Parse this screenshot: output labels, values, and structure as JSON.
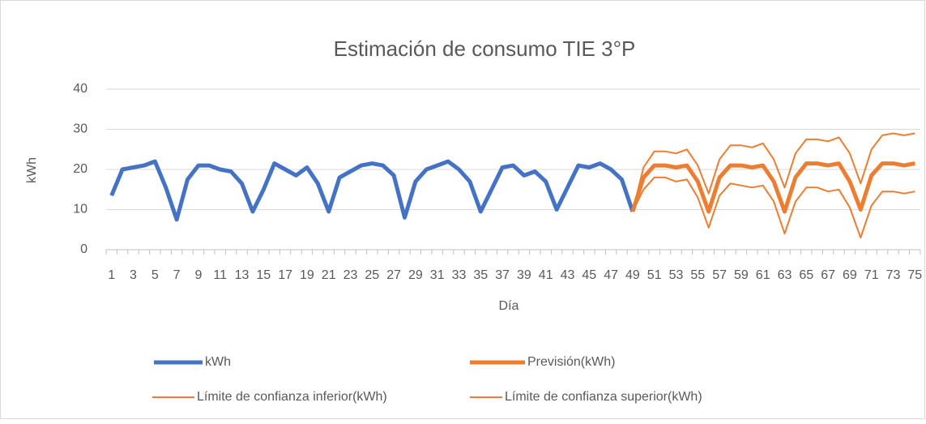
{
  "chart_data": {
    "type": "line",
    "title": "Estimación de consumo TIE 3°P",
    "x_label": "Día",
    "y_label": "kWh",
    "categories": [
      1,
      null,
      3,
      null,
      5,
      null,
      7,
      null,
      9,
      null,
      11,
      null,
      13,
      null,
      15,
      null,
      17,
      null,
      19,
      null,
      21,
      null,
      23,
      null,
      25,
      null,
      27,
      null,
      29,
      null,
      31,
      null,
      33,
      null,
      35,
      null,
      37,
      null,
      39,
      null,
      41,
      null,
      43,
      null,
      45,
      null,
      47,
      null,
      49,
      null,
      51,
      null,
      53,
      null,
      55,
      null,
      57,
      null,
      59,
      null,
      61,
      null,
      63,
      null,
      65,
      null,
      67,
      null,
      69,
      null,
      71,
      null,
      73,
      null,
      75
    ],
    "ylim": [
      0,
      40
    ],
    "yticks": [
      0,
      10,
      20,
      30,
      40
    ],
    "grid": true,
    "series": [
      {
        "name": "kWh",
        "color": "#4472c4",
        "values": [
          13.5,
          20,
          20.5,
          21,
          22,
          15.5,
          7.5,
          17.5,
          21,
          21,
          20,
          19.5,
          16.5,
          9.5,
          15,
          21.5,
          20,
          18.5,
          20.5,
          16.5,
          9.5,
          18,
          19.5,
          21,
          21.5,
          21,
          18.5,
          8,
          17,
          20,
          21,
          22,
          20,
          17,
          9.5,
          15,
          20.5,
          21,
          18.5,
          19.5,
          17,
          10,
          15.5,
          21,
          20.5,
          21.5,
          20,
          17.5,
          9.5,
          null,
          null,
          null,
          null,
          null,
          null,
          null,
          null,
          null,
          null,
          null,
          null,
          null,
          null,
          null,
          null,
          null,
          null,
          null,
          null,
          null,
          null,
          null,
          null,
          null,
          null
        ]
      },
      {
        "name": "Previsión(kWh)",
        "color": "#ed7d31",
        "values": [
          null,
          null,
          null,
          null,
          null,
          null,
          null,
          null,
          null,
          null,
          null,
          null,
          null,
          null,
          null,
          null,
          null,
          null,
          null,
          null,
          null,
          null,
          null,
          null,
          null,
          null,
          null,
          null,
          null,
          null,
          null,
          null,
          null,
          null,
          null,
          null,
          null,
          null,
          null,
          null,
          null,
          null,
          null,
          null,
          null,
          null,
          null,
          null,
          9.5,
          18,
          21,
          21,
          20.5,
          21,
          17,
          9.5,
          18,
          21,
          21,
          20.5,
          21,
          17,
          9.5,
          18,
          21.5,
          21.5,
          21,
          21.5,
          17,
          10,
          18.5,
          21.5,
          21.5,
          21,
          21.5
        ]
      },
      {
        "name": "Límite de confianza inferior(kWh)",
        "color": "#ed7d31",
        "values": [
          null,
          null,
          null,
          null,
          null,
          null,
          null,
          null,
          null,
          null,
          null,
          null,
          null,
          null,
          null,
          null,
          null,
          null,
          null,
          null,
          null,
          null,
          null,
          null,
          null,
          null,
          null,
          null,
          null,
          null,
          null,
          null,
          null,
          null,
          null,
          null,
          null,
          null,
          null,
          null,
          null,
          null,
          null,
          null,
          null,
          null,
          null,
          null,
          9.5,
          15,
          18,
          18,
          17,
          17.5,
          13,
          5.5,
          13.5,
          16.5,
          16,
          15.5,
          16,
          12,
          4,
          12,
          15.5,
          15.5,
          14.5,
          15,
          10.5,
          3,
          11,
          14.5,
          14.5,
          14,
          14.5
        ]
      },
      {
        "name": "Límite de confianza superior(kWh)",
        "color": "#ed7d31",
        "values": [
          null,
          null,
          null,
          null,
          null,
          null,
          null,
          null,
          null,
          null,
          null,
          null,
          null,
          null,
          null,
          null,
          null,
          null,
          null,
          null,
          null,
          null,
          null,
          null,
          null,
          null,
          null,
          null,
          null,
          null,
          null,
          null,
          null,
          null,
          null,
          null,
          null,
          null,
          null,
          null,
          null,
          null,
          null,
          null,
          null,
          null,
          null,
          null,
          9.5,
          20.5,
          24.5,
          24.5,
          24,
          25,
          21,
          14,
          22.5,
          26,
          26,
          25.5,
          26.5,
          22.5,
          15.5,
          24,
          27.5,
          27.5,
          27,
          28,
          24,
          16.5,
          25,
          28.5,
          29,
          28.5,
          29
        ]
      }
    ]
  }
}
